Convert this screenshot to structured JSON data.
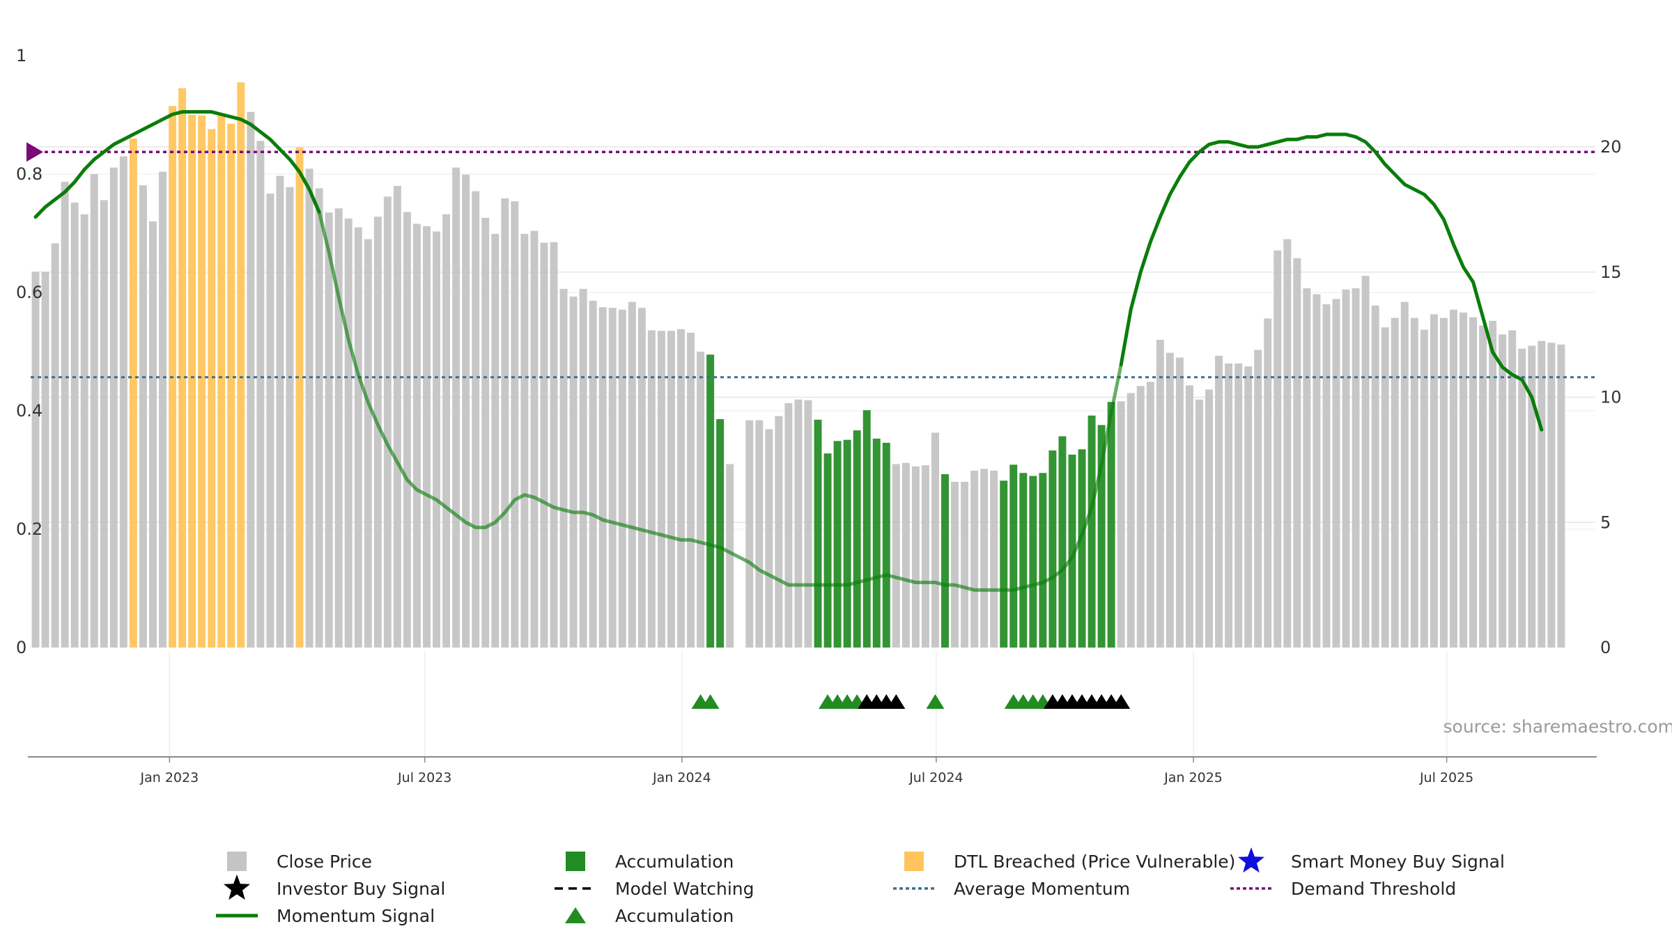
{
  "chart_data": {
    "type": "bar",
    "title": "",
    "xlabel": "",
    "ylabel": "",
    "source": "source: sharemaestro.com",
    "left_axis": {
      "ylim": [
        0,
        1
      ],
      "ticks": [
        "0",
        "0.2",
        "0.4",
        "0.6",
        "0.8",
        "1"
      ],
      "tick_values": [
        0,
        0.2,
        0.4,
        0.6,
        0.8,
        1.0
      ]
    },
    "right_axis": {
      "ylim": [
        0,
        23.6
      ],
      "ticks": [
        "0",
        "5",
        "10",
        "15",
        "20"
      ],
      "tick_values": [
        0,
        5,
        10,
        15,
        20
      ]
    },
    "x_axis": {
      "start": "2022-10-03",
      "weeks": 160,
      "ticks": [
        {
          "label": "Jan 2023",
          "week": 14.2
        },
        {
          "label": "Jul 2023",
          "week": 40.3
        },
        {
          "label": "Jan 2024",
          "week": 66.6
        },
        {
          "label": "Jul 2024",
          "week": 92.6
        },
        {
          "label": "Jan 2025",
          "week": 118.9
        },
        {
          "label": "Jul 2025",
          "week": 144.8
        }
      ]
    },
    "colors": {
      "close": "#c4c4c4",
      "accumulation": "#228b22",
      "dtl": "#ffc55c",
      "momentum": "#0a7d0a",
      "average": "#3a6f96",
      "demand": "#7a0a7a",
      "investor": "#000000",
      "smart_money": "#1010dd"
    },
    "average_momentum": 10.8,
    "demand_threshold": 19.8,
    "close_price": [
      0.635,
      0.635,
      0.683,
      0.787,
      0.752,
      0.732,
      0.8,
      0.756,
      0.811,
      0.83,
      0.86,
      0.781,
      0.72,
      0.804,
      0.915,
      0.945,
      0.9,
      0.899,
      0.876,
      0.9,
      0.885,
      0.955,
      0.905,
      0.856,
      0.767,
      0.797,
      0.778,
      0.845,
      0.809,
      0.776,
      0.735,
      0.742,
      0.725,
      0.71,
      0.69,
      0.728,
      0.762,
      0.78,
      0.736,
      0.716,
      0.712,
      0.703,
      0.732,
      0.811,
      0.799,
      0.771,
      0.726,
      0.699,
      0.759,
      0.754,
      0.699,
      0.704,
      0.684,
      0.685,
      0.606,
      0.593,
      0.606,
      0.586,
      0.575,
      0.574,
      0.571,
      0.584,
      0.574,
      0.536,
      0.535,
      0.535,
      0.538,
      0.532,
      0.5,
      0.495,
      0.386,
      0.31,
      0.0,
      0.384,
      0.384,
      0.369,
      0.391,
      0.413,
      0.419,
      0.418,
      0.385,
      0.328,
      0.349,
      0.351,
      0.367,
      0.401,
      0.353,
      0.346,
      0.31,
      0.312,
      0.306,
      0.308,
      0.363,
      0.293,
      0.28,
      0.28,
      0.299,
      0.302,
      0.299,
      0.282,
      0.309,
      0.295,
      0.29,
      0.295,
      0.333,
      0.357,
      0.326,
      0.335,
      0.392,
      0.376,
      0.415,
      0.416,
      0.43,
      0.442,
      0.449,
      0.52,
      0.498,
      0.49,
      0.443,
      0.419,
      0.436,
      0.493,
      0.48,
      0.48,
      0.475,
      0.503,
      0.556,
      0.671,
      0.69,
      0.658,
      0.607,
      0.597,
      0.58,
      0.589,
      0.605,
      0.607,
      0.628,
      0.578,
      0.541,
      0.557,
      0.584,
      0.557,
      0.537,
      0.563,
      0.557,
      0.571,
      0.566,
      0.558,
      0.544,
      0.552,
      0.529,
      0.536,
      0.505,
      0.51,
      0.518,
      0.515,
      0.512
    ],
    "bar_types": "CCCCCCCCCCDCCCDDDDDDDDCCCCCDCCCCCCCCCCCCCCCCCCCCCCCCCCCCCCCCCCCCCCCCCAACCCCCCCCCAAAAAAAACCCCCACCCCCAAAAAAAAAAAACCCCCCCCCCCCCCCCCCCCCCCCCCCCCCCCCCCCCCCCCCCCCCCCCC",
    "momentum_signal": [
      [
        0,
        17.2
      ],
      [
        1,
        17.6
      ],
      [
        2,
        17.9
      ],
      [
        3,
        18.2
      ],
      [
        4,
        18.6
      ],
      [
        5,
        19.1
      ],
      [
        6,
        19.5
      ],
      [
        7,
        19.8
      ],
      [
        8,
        20.1
      ],
      [
        9,
        20.3
      ],
      [
        10,
        20.5
      ],
      [
        11,
        20.7
      ],
      [
        12,
        20.9
      ],
      [
        13,
        21.1
      ],
      [
        14,
        21.3
      ],
      [
        15,
        21.4
      ],
      [
        16,
        21.4
      ],
      [
        17,
        21.4
      ],
      [
        18,
        21.4
      ],
      [
        19,
        21.3
      ],
      [
        20,
        21.2
      ],
      [
        21,
        21.1
      ],
      [
        22,
        20.9
      ],
      [
        23,
        20.6
      ],
      [
        24,
        20.3
      ],
      [
        25,
        19.9
      ],
      [
        26,
        19.5
      ],
      [
        27,
        19.0
      ],
      [
        28,
        18.3
      ],
      [
        29,
        17.4
      ],
      [
        30,
        15.8
      ],
      [
        31,
        14.0
      ],
      [
        32,
        12.3
      ],
      [
        33,
        10.9
      ],
      [
        34,
        9.8
      ],
      [
        35,
        8.9
      ],
      [
        36,
        8.1
      ],
      [
        37,
        7.4
      ],
      [
        38,
        6.7
      ],
      [
        39,
        6.3
      ],
      [
        40,
        6.1
      ],
      [
        41,
        5.9
      ],
      [
        42,
        5.6
      ],
      [
        43,
        5.3
      ],
      [
        44,
        5.0
      ],
      [
        45,
        4.8
      ],
      [
        46,
        4.8
      ],
      [
        47,
        5.0
      ],
      [
        48,
        5.4
      ],
      [
        49,
        5.9
      ],
      [
        50,
        6.1
      ],
      [
        51,
        6.0
      ],
      [
        52,
        5.8
      ],
      [
        53,
        5.6
      ],
      [
        54,
        5.5
      ],
      [
        55,
        5.4
      ],
      [
        56,
        5.4
      ],
      [
        57,
        5.3
      ],
      [
        58,
        5.1
      ],
      [
        59,
        5.0
      ],
      [
        60,
        4.9
      ],
      [
        61,
        4.8
      ],
      [
        62,
        4.7
      ],
      [
        63,
        4.6
      ],
      [
        64,
        4.5
      ],
      [
        65,
        4.4
      ],
      [
        66,
        4.3
      ],
      [
        67,
        4.3
      ],
      [
        68,
        4.2
      ],
      [
        69,
        4.1
      ],
      [
        70,
        4.0
      ],
      [
        71,
        3.8
      ],
      [
        72,
        3.6
      ],
      [
        73,
        3.4
      ],
      [
        74,
        3.1
      ],
      [
        75,
        2.9
      ],
      [
        76,
        2.7
      ],
      [
        77,
        2.5
      ],
      [
        78,
        2.5
      ],
      [
        79,
        2.5
      ],
      [
        80,
        2.5
      ],
      [
        81,
        2.5
      ],
      [
        82,
        2.5
      ],
      [
        83,
        2.5
      ],
      [
        84,
        2.6
      ],
      [
        85,
        2.7
      ],
      [
        86,
        2.8
      ],
      [
        87,
        2.9
      ],
      [
        88,
        2.8
      ],
      [
        89,
        2.7
      ],
      [
        90,
        2.6
      ],
      [
        91,
        2.6
      ],
      [
        92,
        2.6
      ],
      [
        93,
        2.5
      ],
      [
        94,
        2.5
      ],
      [
        95,
        2.4
      ],
      [
        96,
        2.3
      ],
      [
        97,
        2.3
      ],
      [
        98,
        2.3
      ],
      [
        99,
        2.3
      ],
      [
        100,
        2.3
      ],
      [
        101,
        2.4
      ],
      [
        102,
        2.5
      ],
      [
        103,
        2.6
      ],
      [
        104,
        2.8
      ],
      [
        105,
        3.1
      ],
      [
        106,
        3.6
      ],
      [
        107,
        4.5
      ],
      [
        108,
        5.6
      ],
      [
        109,
        7.3
      ],
      [
        110,
        9.4
      ],
      [
        111,
        11.3
      ],
      [
        112,
        13.5
      ],
      [
        113,
        15.0
      ],
      [
        114,
        16.2
      ],
      [
        115,
        17.2
      ],
      [
        116,
        18.1
      ],
      [
        117,
        18.8
      ],
      [
        118,
        19.4
      ],
      [
        119,
        19.8
      ],
      [
        120,
        20.1
      ],
      [
        121,
        20.2
      ],
      [
        122,
        20.2
      ],
      [
        123,
        20.1
      ],
      [
        124,
        20.0
      ],
      [
        125,
        20.0
      ],
      [
        126,
        20.1
      ],
      [
        127,
        20.2
      ],
      [
        128,
        20.3
      ],
      [
        129,
        20.3
      ],
      [
        130,
        20.4
      ],
      [
        131,
        20.4
      ],
      [
        132,
        20.5
      ],
      [
        133,
        20.5
      ],
      [
        134,
        20.5
      ],
      [
        135,
        20.4
      ],
      [
        136,
        20.2
      ],
      [
        137,
        19.8
      ],
      [
        138,
        19.3
      ],
      [
        139,
        18.9
      ],
      [
        140,
        18.5
      ],
      [
        141,
        18.3
      ],
      [
        142,
        18.1
      ],
      [
        143,
        17.7
      ],
      [
        144,
        17.1
      ],
      [
        145,
        16.1
      ],
      [
        146,
        15.2
      ],
      [
        147,
        14.6
      ],
      [
        148,
        13.2
      ],
      [
        149,
        11.8
      ],
      [
        150,
        11.2
      ],
      [
        151,
        10.9
      ],
      [
        152,
        10.7
      ],
      [
        153,
        10.0
      ],
      [
        154,
        8.7
      ]
    ],
    "momentum_fade": [
      29,
      111
    ],
    "accumulation_markers": [
      68,
      69,
      81,
      82,
      83,
      84,
      92,
      100,
      101,
      102,
      103
    ],
    "investor_markers": [
      85,
      86,
      87,
      88,
      104,
      105,
      106,
      107,
      108,
      109,
      110,
      111
    ],
    "legend": [
      {
        "label": "Close Price",
        "key": "close",
        "marker": "square"
      },
      {
        "label": "Accumulation",
        "key": "accumulation",
        "marker": "square"
      },
      {
        "label": "DTL Breached (Price Vulnerable)",
        "key": "dtl",
        "marker": "square"
      },
      {
        "label": "Smart Money Buy Signal",
        "key": "smart_money",
        "marker": "star"
      },
      {
        "label": "Investor Buy Signal",
        "key": "investor",
        "marker": "star"
      },
      {
        "label": "Model Watching",
        "key": "investor",
        "marker": "dash"
      },
      {
        "label": "Average Momentum",
        "key": "average",
        "marker": "dotted"
      },
      {
        "label": "Demand Threshold",
        "key": "demand",
        "marker": "dotted"
      },
      {
        "label": "Momentum Signal",
        "key": "momentum",
        "marker": "line"
      },
      {
        "label": "Accumulation",
        "key": "accumulation",
        "marker": "triangle"
      }
    ]
  }
}
